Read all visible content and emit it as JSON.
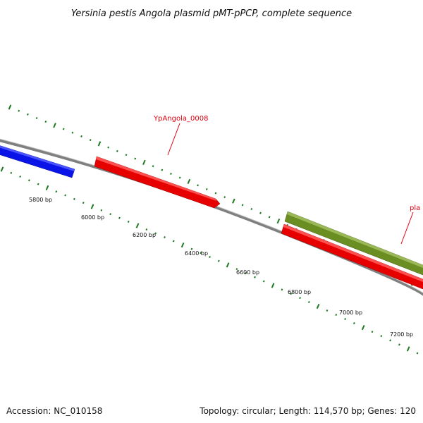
{
  "title": "Yersinia pestis Angola plasmid pMT-pPCP, complete sequence",
  "footer": {
    "accession": "Accession: NC_010158",
    "summary": "Topology: circular; Length: 114,570 bp; Genes: 120"
  },
  "colors": {
    "backbone": "#7f7f7f",
    "tick": "#1e7a1e",
    "gene_blue": "#0a14e6",
    "gene_red": "#e60000",
    "gene_olive": "#6b8e23",
    "label_red": "#e3000f"
  },
  "scale_labels": [
    "5800 bp",
    "6000 bp",
    "6200 bp",
    "6400 bp",
    "6600 bp",
    "6800 bp",
    "7000 bp",
    "7200 bp"
  ],
  "gene_labels": [
    {
      "text": "YpAngola_0008"
    },
    {
      "text": "pla"
    }
  ],
  "features": [
    {
      "id": "feature-blue",
      "color_key": "gene_blue",
      "strand": "plus",
      "arrow": false
    },
    {
      "id": "feature-red-1",
      "color_key": "gene_red",
      "strand": "plus",
      "arrow": true
    },
    {
      "id": "feature-olive",
      "color_key": "gene_olive",
      "strand": "plus",
      "arrow": false
    },
    {
      "id": "feature-red-2",
      "color_key": "gene_red",
      "strand": "plus",
      "arrow": false
    }
  ]
}
